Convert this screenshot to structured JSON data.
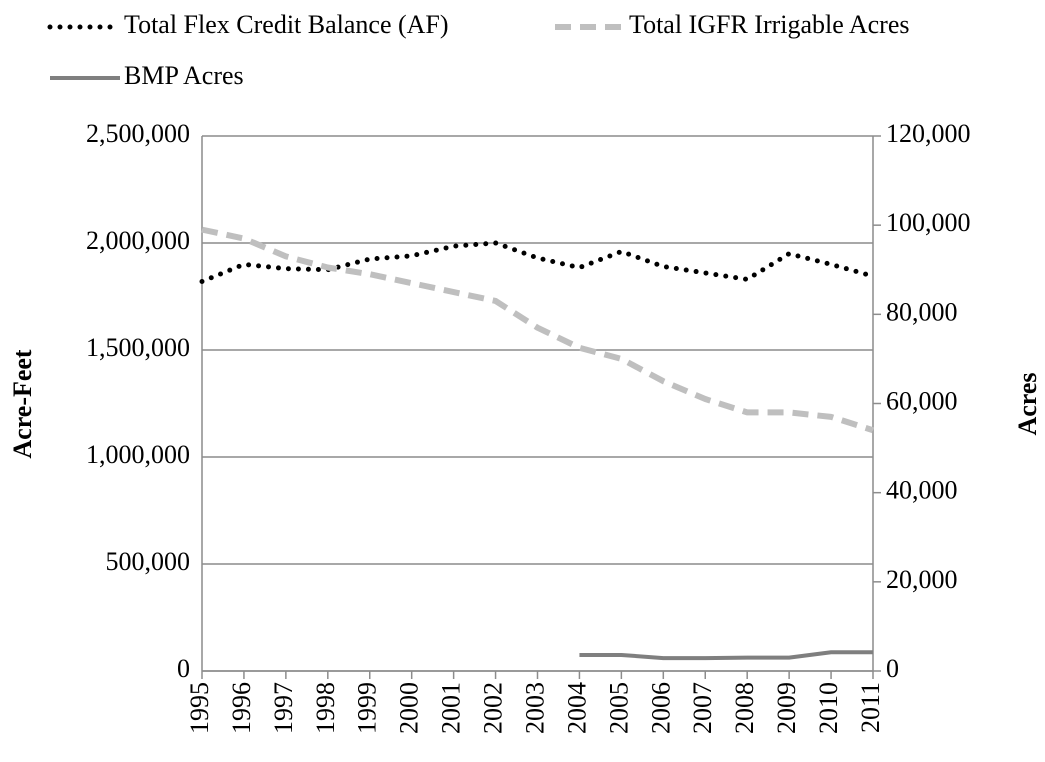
{
  "chart_data": {
    "type": "line",
    "y_label": "Acre-Feet",
    "y2_label": "Acres",
    "categories": [
      "1995",
      "1996",
      "1997",
      "1998",
      "1999",
      "2000",
      "2001",
      "2002",
      "2003",
      "2004",
      "2005",
      "2006",
      "2007",
      "2008",
      "2009",
      "2010",
      "2011"
    ],
    "series": [
      {
        "name": "Total Flex Credit Balance (AF)",
        "color": "#000000",
        "style": "dotted",
        "values": [
          1820000,
          1900000,
          1880000,
          1875000,
          1925000,
          1940000,
          1985000,
          2000000,
          1930000,
          1885000,
          1960000,
          1890000,
          1860000,
          1830000,
          1950000,
          1900000,
          1845000
        ]
      },
      {
        "name": "Total IGFR Irrigable Acres",
        "color": "#bfbfbf",
        "style": "dashed",
        "axis": "y2",
        "values": [
          99000,
          97000,
          93000,
          90500,
          89000,
          87000,
          85000,
          83000,
          77000,
          72500,
          70000,
          65000,
          61000,
          58000,
          58000,
          57000,
          54000
        ]
      },
      {
        "name": "BMP Acres",
        "color": "#7f7f7f",
        "style": "solid",
        "axis": "y2",
        "values": [
          null,
          null,
          null,
          null,
          null,
          null,
          null,
          null,
          null,
          3600,
          3600,
          2900,
          2900,
          3000,
          3000,
          4200,
          4200
        ]
      }
    ],
    "ylim": [
      0,
      2500000
    ],
    "yticks": [
      0,
      {
        "value": 500000,
        "label": "500,000"
      },
      {
        "value": 1000000,
        "label": "1,000,000"
      },
      {
        "value": 1500000,
        "label": "1,500,000"
      },
      {
        "value": 2000000,
        "label": "2,000,000"
      },
      {
        "value": 2500000,
        "label": "2,500,000"
      }
    ],
    "y2lim": [
      0,
      120000
    ],
    "y2ticks": [
      0,
      {
        "value": 20000,
        "label": "20,000"
      },
      {
        "value": 40000,
        "label": "40,000"
      },
      {
        "value": 60000,
        "label": "60,000"
      },
      {
        "value": 80000,
        "label": "80,000"
      },
      {
        "value": 100000,
        "label": "100,000"
      },
      {
        "value": 120000,
        "label": "120,000"
      }
    ],
    "grid": true,
    "legend": "top"
  }
}
